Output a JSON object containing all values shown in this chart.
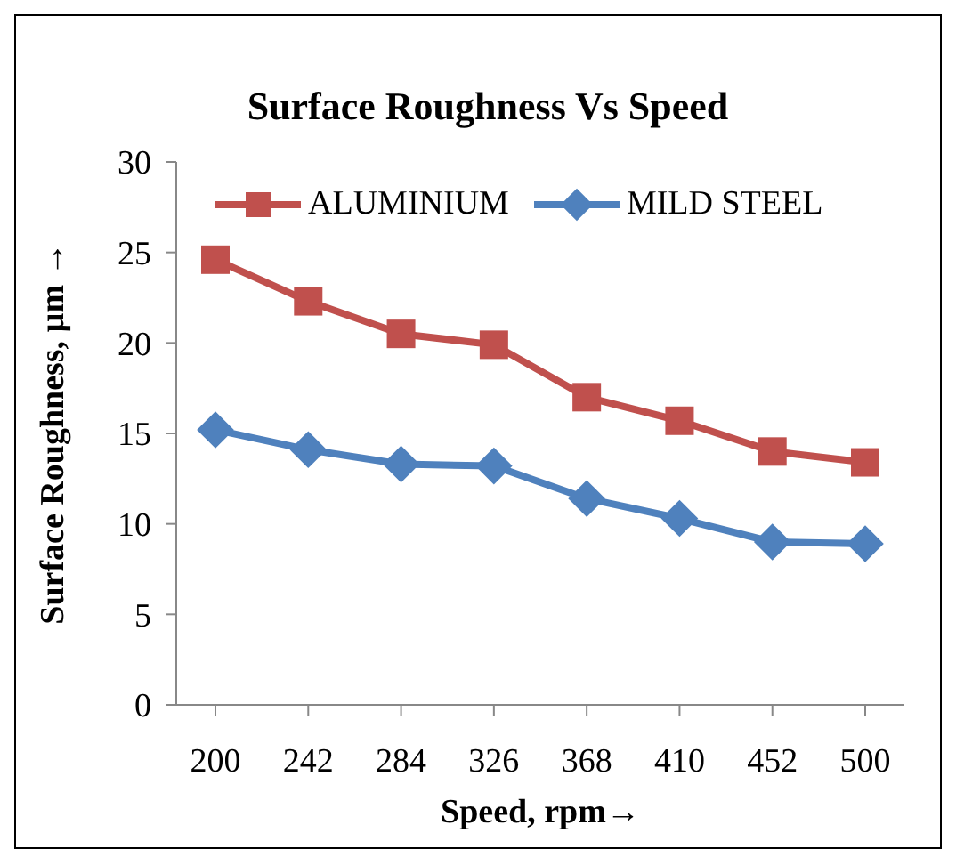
{
  "chart_data": {
    "type": "line",
    "title": "Surface Roughness Vs Speed",
    "xlabel": "Speed, rpm→",
    "ylabel": "Surface Roughness, µm →",
    "categories": [
      "200",
      "242",
      "284",
      "326",
      "368",
      "410",
      "452",
      "500"
    ],
    "series": [
      {
        "name": "ALUMINIUM",
        "color": "#c0504d",
        "marker": "square",
        "values": [
          24.6,
          22.3,
          20.5,
          19.9,
          17.0,
          15.7,
          14.0,
          13.4
        ]
      },
      {
        "name": "MILD STEEL",
        "color": "#4f81bd",
        "marker": "diamond",
        "values": [
          15.2,
          14.1,
          13.3,
          13.2,
          11.4,
          10.3,
          9.0,
          8.9
        ]
      }
    ],
    "ylim": [
      0,
      30
    ],
    "yticks": [
      0,
      5,
      10,
      15,
      20,
      25,
      30
    ],
    "grid": false,
    "legend": "top",
    "line_style": "solid"
  }
}
